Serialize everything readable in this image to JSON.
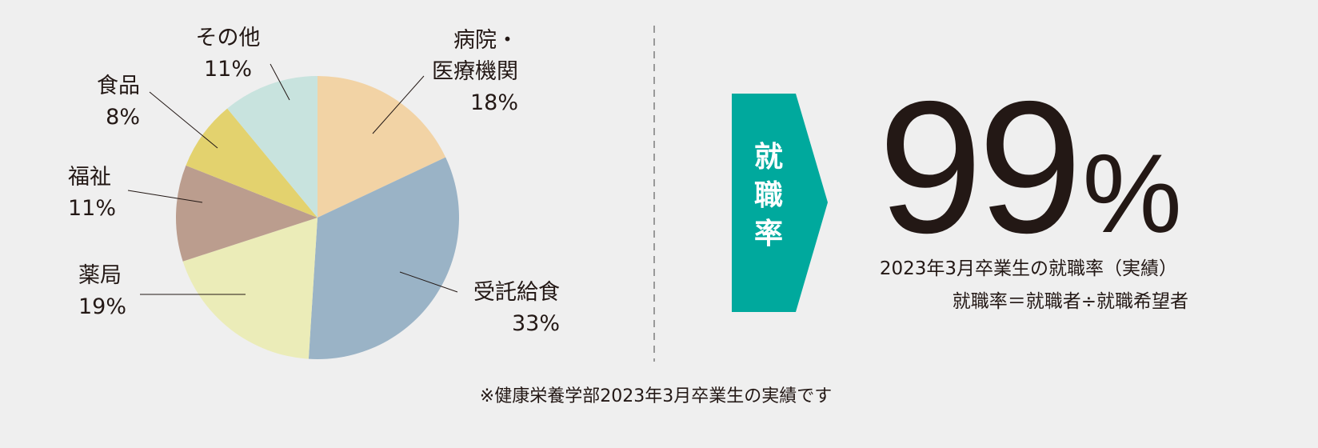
{
  "chart_data": {
    "type": "pie",
    "categories": [
      "病院・\n医療機関",
      "受託給食",
      "薬局",
      "福祉",
      "食品",
      "その他"
    ],
    "values": [
      18,
      33,
      19,
      11,
      8,
      11
    ],
    "value_labels": [
      "18%",
      "33%",
      "19%",
      "11%",
      "8%",
      "11%"
    ],
    "colors": [
      "#f2d3a5",
      "#9ab3c6",
      "#ebecb8",
      "#bb9d8e",
      "#e3d26e",
      "#c8e3de"
    ]
  },
  "summary": {
    "badge": "就職率",
    "rate_number": "99",
    "rate_unit": "%",
    "caption": "2023年3月卒業生の就職率（実績）",
    "formula": "就職率＝就職者÷就職希望者"
  },
  "footnote": "※健康栄養学部2023年3月卒業生の実績です"
}
